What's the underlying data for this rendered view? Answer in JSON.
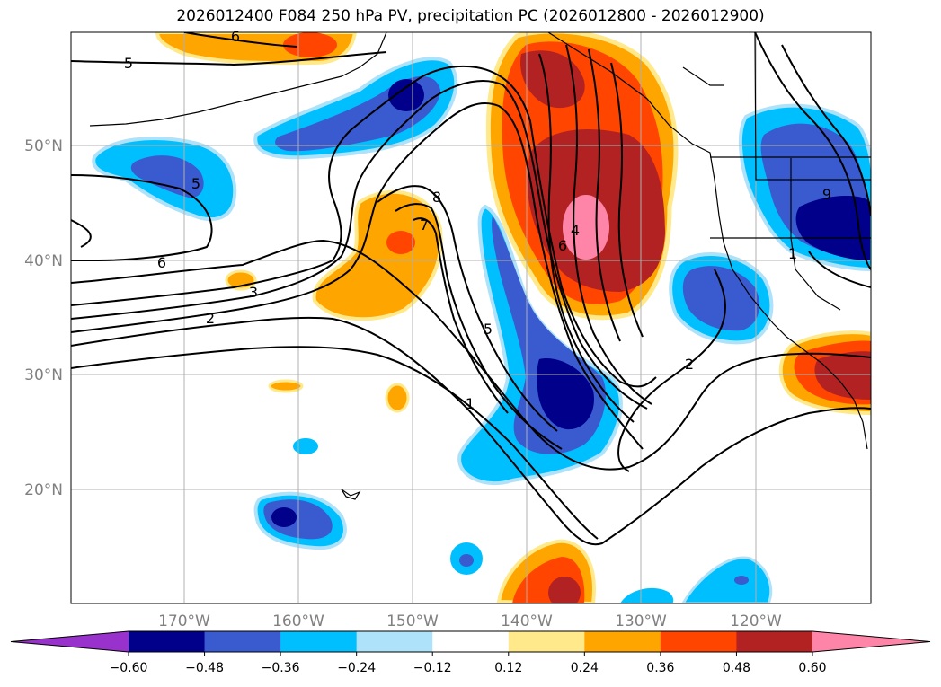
{
  "title": "2026012400 F084 250 hPa PV, precipitation PC (2026012800 - 2026012900)",
  "lat_labels": [
    "50°N",
    "40°N",
    "30°N",
    "20°N"
  ],
  "lon_labels": [
    "170°W",
    "160°W",
    "150°W",
    "140°W",
    "130°W",
    "120°W"
  ],
  "contour_labels": [
    "6",
    "5",
    "5",
    "6",
    "3",
    "2",
    "8",
    "7",
    "5",
    "1",
    "6",
    "4",
    "1",
    "2",
    "9"
  ],
  "colorbar": {
    "ticks": [
      "−0.60",
      "−0.48",
      "−0.36",
      "−0.24",
      "−0.12",
      "0.12",
      "0.24",
      "0.36",
      "0.48",
      "0.60"
    ],
    "colors": [
      "#9932cc",
      "#00008b",
      "#3a5ad0",
      "#00bfff",
      "#aee2fa",
      "#ffffff",
      "#ffe98a",
      "#ffa500",
      "#ff4500",
      "#b22222",
      "#ff85a8"
    ]
  },
  "fill_colors": {
    "neg_light": "#aee2fa",
    "neg_mid": "#00bfff",
    "neg_strong": "#3a5ad0",
    "neg_max": "#00008b",
    "pos_light": "#ffe98a",
    "pos_mid": "#ffa500",
    "pos_strong": "#ff4500",
    "pos_high": "#b22222",
    "pos_max": "#ff85a8"
  }
}
